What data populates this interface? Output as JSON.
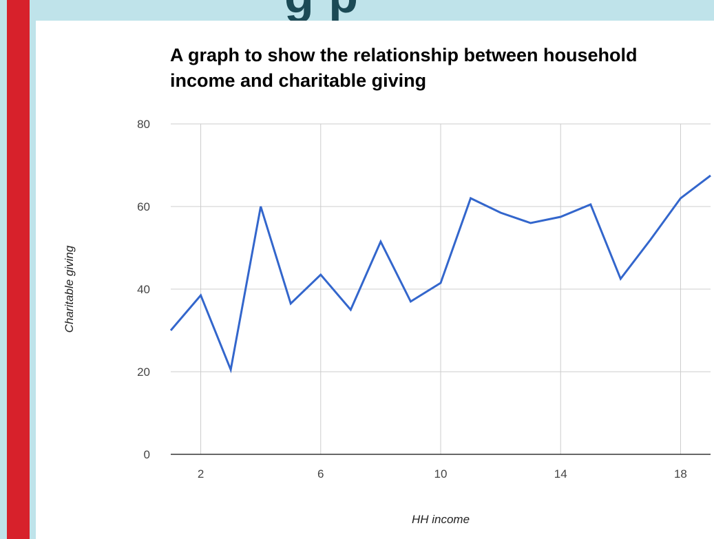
{
  "slide": {
    "heading_fragment": "g               p",
    "accent_color": "#d7212b",
    "background_color": "#bfe3ea"
  },
  "chart_data": {
    "type": "line",
    "title": "A graph to show the relationship between household income and charitable giving",
    "xlabel": "HH income",
    "ylabel": "Charitable giving",
    "xlim": [
      1,
      19
    ],
    "ylim": [
      0,
      80
    ],
    "x_ticks": [
      2,
      6,
      10,
      14,
      18
    ],
    "y_ticks": [
      0,
      20,
      40,
      60,
      80
    ],
    "grid": true,
    "legend": "none",
    "series": [
      {
        "color": "#3366cc",
        "x": [
          1,
          2,
          3,
          4,
          5,
          6,
          7,
          8,
          9,
          10,
          11,
          12,
          13,
          14,
          15,
          16,
          17,
          18,
          19
        ],
        "y": [
          30,
          38.5,
          20.5,
          60,
          36.5,
          43.5,
          35,
          51.5,
          37,
          41.5,
          62,
          58.5,
          56,
          57.5,
          60.5,
          42.5,
          52,
          62,
          67.5
        ]
      }
    ]
  }
}
